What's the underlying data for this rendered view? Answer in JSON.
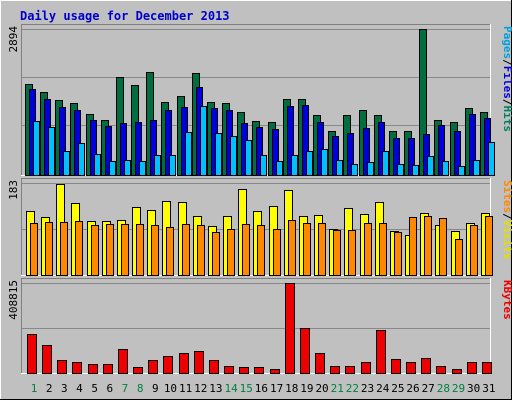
{
  "title": "Daily usage for December 2013",
  "colors": {
    "frame": "#c0c0c0",
    "plot": "#c0c0c0",
    "grid": "#888888",
    "hits": "#006e40",
    "files": "#0000dd",
    "pages": "#00c0ff",
    "visits": "#ffff00",
    "sites": "#ff8800",
    "kbytes": "#ee0000",
    "weekday_label": "#000000",
    "weekend_label": "#008040"
  },
  "legends": {
    "top": [
      {
        "text": "Pages",
        "color": "#00a0e0"
      },
      {
        "text": "/",
        "color": "#000000"
      },
      {
        "text": "Files",
        "color": "#0000dd"
      },
      {
        "text": "/",
        "color": "#000000"
      },
      {
        "text": "Hits",
        "color": "#008060"
      }
    ],
    "middle": [
      {
        "text": "Sites",
        "color": "#ff8800"
      },
      {
        "text": "/",
        "color": "#000000"
      },
      {
        "text": "Visits",
        "color": "#e0e000"
      }
    ],
    "bottom": [
      {
        "text": "KBytes",
        "color": "#ee0000"
      }
    ]
  },
  "chart_data": [
    {
      "type": "bar",
      "name": "hits-files-pages",
      "ylabel_max": "2894",
      "ylim": [
        0,
        2894
      ],
      "categories": [
        "1",
        "2",
        "3",
        "4",
        "5",
        "6",
        "7",
        "8",
        "9",
        "10",
        "11",
        "12",
        "13",
        "14",
        "15",
        "16",
        "17",
        "18",
        "19",
        "20",
        "21",
        "22",
        "23",
        "24",
        "25",
        "26",
        "27",
        "28",
        "29",
        "30",
        "31"
      ],
      "weekend_days": [
        "1",
        "7",
        "8",
        "14",
        "15",
        "21",
        "22",
        "28",
        "29"
      ],
      "series": [
        {
          "name": "Hits",
          "values": [
            1800,
            1650,
            1480,
            1420,
            1200,
            1100,
            1950,
            1780,
            2040,
            1450,
            1560,
            2030,
            1450,
            1420,
            1240,
            1080,
            1060,
            1500,
            1500,
            1180,
            880,
            1190,
            1280,
            1180,
            880,
            880,
            2890,
            1100,
            1060,
            1320,
            1240
          ]
        },
        {
          "name": "Files",
          "values": [
            1700,
            1500,
            1350,
            1280,
            1100,
            970,
            1040,
            1050,
            1100,
            1280,
            1350,
            1750,
            1320,
            1280,
            1030,
            950,
            920,
            1360,
            1380,
            1050,
            780,
            830,
            940,
            1050,
            730,
            740,
            820,
            1000,
            880,
            1200,
            1130
          ]
        },
        {
          "name": "Pages",
          "values": [
            1070,
            950,
            480,
            640,
            420,
            280,
            290,
            280,
            400,
            390,
            850,
            1360,
            830,
            780,
            700,
            400,
            280,
            400,
            470,
            520,
            300,
            220,
            250,
            470,
            220,
            200,
            380,
            270,
            180,
            290,
            660
          ]
        }
      ]
    },
    {
      "type": "bar",
      "name": "visits-sites",
      "ylabel_max": "183",
      "ylim": [
        0,
        183
      ],
      "categories": [
        "1",
        "2",
        "3",
        "4",
        "5",
        "6",
        "7",
        "8",
        "9",
        "10",
        "11",
        "12",
        "13",
        "14",
        "15",
        "16",
        "17",
        "18",
        "19",
        "20",
        "21",
        "22",
        "23",
        "24",
        "25",
        "26",
        "27",
        "28",
        "29",
        "30",
        "31"
      ],
      "series": [
        {
          "name": "Visits",
          "values": [
            128,
            115,
            182,
            143,
            107,
            108,
            110,
            135,
            129,
            147,
            145,
            117,
            97,
            117,
            172,
            128,
            138,
            170,
            117,
            120,
            92,
            133,
            121,
            145,
            87,
            79,
            123,
            100,
            87,
            103,
            123
          ]
        },
        {
          "name": "Sites",
          "values": [
            103,
            106,
            106,
            107,
            99,
            101,
            102,
            102,
            100,
            95,
            101,
            100,
            85,
            92,
            101,
            100,
            91,
            109,
            104,
            104,
            90,
            89,
            103,
            104,
            85,
            116,
            117,
            113,
            71,
            100,
            118
          ]
        }
      ]
    },
    {
      "type": "bar",
      "name": "kbytes",
      "ylabel_max": "408815",
      "ylim": [
        0,
        408815
      ],
      "categories": [
        "1",
        "2",
        "3",
        "4",
        "5",
        "6",
        "7",
        "8",
        "9",
        "10",
        "11",
        "12",
        "13",
        "14",
        "15",
        "16",
        "17",
        "18",
        "19",
        "20",
        "21",
        "22",
        "23",
        "24",
        "25",
        "26",
        "27",
        "28",
        "29",
        "30",
        "31"
      ],
      "series": [
        {
          "name": "KBytes",
          "values": [
            178000,
            128000,
            58000,
            50000,
            40000,
            42000,
            111000,
            25000,
            60000,
            79000,
            90000,
            100000,
            59000,
            30000,
            28000,
            25000,
            20000,
            408815,
            204000,
            90000,
            30000,
            30000,
            49000,
            194000,
            62000,
            49000,
            70000,
            30000,
            19000,
            50000,
            50000
          ]
        }
      ]
    }
  ]
}
